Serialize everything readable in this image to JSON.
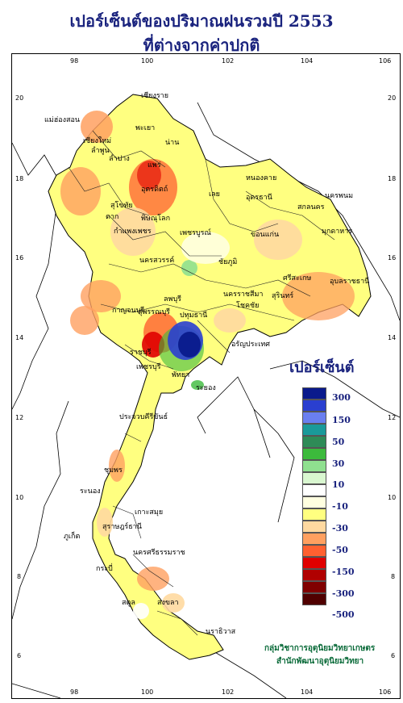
{
  "title": {
    "line1": "เปอร์เซ็นต์ของปริมาณฝนรวมปี  2553",
    "line2": "ที่ต่างจากค่าปกติ"
  },
  "axis": {
    "longitudes": [
      "98",
      "100",
      "102",
      "104",
      "106"
    ],
    "latitudes": [
      "20",
      "18",
      "16",
      "14",
      "12",
      "10",
      "8",
      "6"
    ]
  },
  "legend": {
    "title": "เปอร์เซ็นต์",
    "labels": [
      "300",
      "150",
      "50",
      "30",
      "10",
      "-10",
      "-30",
      "-50",
      "-150",
      "-300",
      "-500"
    ],
    "colors": [
      "#0a1a8c",
      "#2a3fd0",
      "#6a7ff0",
      "#1a9a9a",
      "#2e8b57",
      "#3cba3c",
      "#8fe08f",
      "#d9f7d0",
      "#ffffff",
      "#ffffe0",
      "#ffff80",
      "#ffd9a0",
      "#ffa060",
      "#ff6030",
      "#e00000",
      "#b00000",
      "#800000",
      "#500000"
    ]
  },
  "provinces": [
    "เชียงราย",
    "แม่ฮ่องสอน",
    "พะเยา",
    "เชียงใหม่",
    "น่าน",
    "ลำพูน",
    "ลำปาง",
    "แพร่",
    "อุตรดิตถ์",
    "ตาก",
    "สุโขทัย",
    "พิษณุโลก",
    "เลย",
    "หนองคาย",
    "อุดรธานี",
    "นครพนม",
    "สกลนคร",
    "มุกดาหาร",
    "กำแพงเพชร",
    "เพชรบูรณ์",
    "ขอนแก่น",
    "นครสวรรค์",
    "ชัยภูมิ",
    "อุบลราชธานี",
    "ศรีสะเกษ",
    "สุรินทร์",
    "นครราชสีมา",
    "โชคชัย",
    "ลพบุรี",
    "สุพรรณบุรี",
    "กาญจนบุรี",
    "ปทุมธานี",
    "ราชบุรี",
    "เพชรบุรี",
    "พัทยา",
    "ระยอง",
    "อรัญประเทศ",
    "ประจวบคีรีขันธ์",
    "ชุมพร",
    "ระนอง",
    "เกาะสมุย",
    "สุราษฎร์ธานี",
    "ภูเก็ต",
    "นครศรีธรรมราช",
    "กระบี่",
    "สตูล",
    "สงขลา",
    "นราธิวาส"
  ],
  "credit": {
    "line1": "กลุ่มวิชาการอุตุนิยมวิทยาเกษตร",
    "line2": "สำนักพัฒนาอุตุนิยมวิทยา"
  }
}
